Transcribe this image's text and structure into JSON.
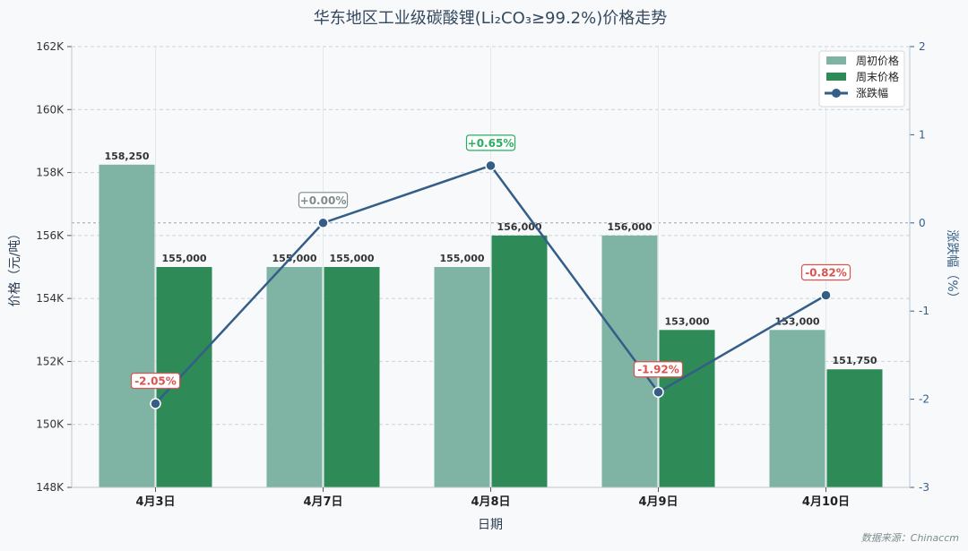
{
  "chart_data": {
    "type": "bar",
    "title": "华东地区工业级碳酸锂(Li₂CO₃≥99.2%)价格走势",
    "xlabel": "日期",
    "ylabel": "价格（元/吨）",
    "y2label": "涨跌幅（%）",
    "categories": [
      "4月3日",
      "4月7日",
      "4月8日",
      "4月9日",
      "4月10日"
    ],
    "ylim": [
      148000,
      162000
    ],
    "yticks": [
      "148K",
      "150K",
      "152K",
      "154K",
      "156K",
      "158K",
      "160K",
      "162K"
    ],
    "y2lim": [
      -3,
      2
    ],
    "y2ticks": [
      "2",
      "1",
      "0",
      "-1",
      "-2",
      "-3"
    ],
    "series": [
      {
        "name": "周初价格",
        "type": "bar",
        "color": "#7fb3a3",
        "values": [
          158250,
          155000,
          155000,
          156000,
          153000
        ],
        "labels": [
          "158,250",
          "155,000",
          "155,000",
          "156,000",
          "153,000"
        ]
      },
      {
        "name": "周末价格",
        "type": "bar",
        "color": "#2e8b57",
        "values": [
          155000,
          155000,
          156000,
          153000,
          151750
        ],
        "labels": [
          "155,000",
          "155,000",
          "156,000",
          "153,000",
          "151,750"
        ]
      },
      {
        "name": "涨跌幅",
        "type": "line",
        "axis": "right",
        "color": "#345e87",
        "values": [
          -2.05,
          0.0,
          0.65,
          -1.92,
          -0.82
        ],
        "labels": [
          "-2.05%",
          "+0.00%",
          "+0.65%",
          "-1.92%",
          "-0.82%"
        ]
      }
    ],
    "legend": "top-right",
    "grid": true,
    "source": "数据来源：Chinaccm"
  }
}
